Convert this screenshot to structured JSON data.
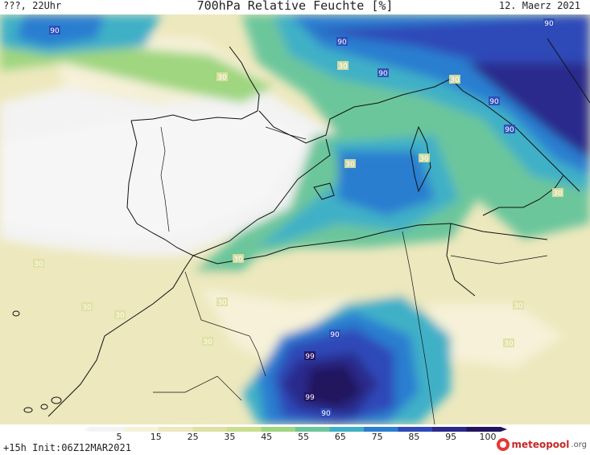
{
  "header": {
    "left": "???, 22Uhr",
    "title": "700hPa Relative Feuchte [%]",
    "date": "12. Maerz 2021"
  },
  "legend": {
    "ticks": [
      "5",
      "15",
      "25",
      "35",
      "45",
      "55",
      "65",
      "75",
      "85",
      "95",
      "100"
    ],
    "colors": [
      "#f3f3f3",
      "#f6f1d8",
      "#ede8bd",
      "#dfe0a1",
      "#c9df8e",
      "#9fd67f",
      "#6cc69b",
      "#3fb0c7",
      "#2b7ed0",
      "#2e49b8",
      "#2c2a8c",
      "#23145f"
    ]
  },
  "footer": {
    "init": "+15h Init:06Z12MAR2021",
    "brand": "meteopool",
    "brand_suffix": ".org"
  },
  "isolines": [
    {
      "label": "90",
      "color": "#2e49b8"
    },
    {
      "label": "90",
      "color": "#2e49b8"
    },
    {
      "label": "90",
      "color": "#2e49b8"
    },
    {
      "label": "90",
      "color": "#2e49b8"
    },
    {
      "label": "90",
      "color": "#2e49b8"
    },
    {
      "label": "90",
      "color": "#2e49b8"
    },
    {
      "label": "30",
      "color": "#dfe0a1"
    },
    {
      "label": "30",
      "color": "#dfe0a1"
    },
    {
      "label": "30",
      "color": "#dfe0a1"
    },
    {
      "label": "30",
      "color": "#dfe0a1"
    },
    {
      "label": "30",
      "color": "#dfe0a1"
    },
    {
      "label": "30",
      "color": "#dfe0a1"
    },
    {
      "label": "30",
      "color": "#dfe0a1"
    },
    {
      "label": "30",
      "color": "#dfe0a1"
    },
    {
      "label": "30",
      "color": "#dfe0a1"
    },
    {
      "label": "30",
      "color": "#dfe0a1"
    },
    {
      "label": "30",
      "color": "#dfe0a1"
    },
    {
      "label": "30",
      "color": "#dfe0a1"
    },
    {
      "label": "30",
      "color": "#dfe0a1"
    },
    {
      "label": "30",
      "color": "#dfe0a1"
    },
    {
      "label": "90",
      "color": "#2e49b8"
    },
    {
      "label": "99",
      "color": "#23145f"
    },
    {
      "label": "99",
      "color": "#23145f"
    },
    {
      "label": "90",
      "color": "#2e49b8"
    }
  ]
}
